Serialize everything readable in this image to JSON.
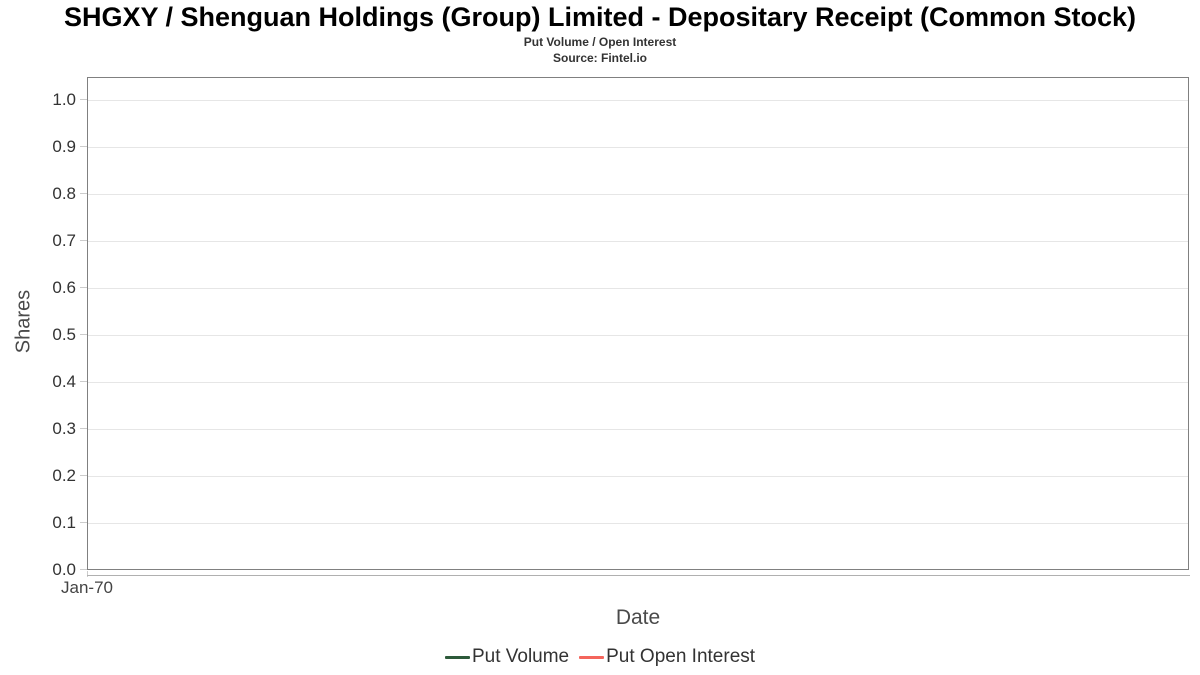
{
  "header": {
    "title": "SHGXY / Shenguan Holdings (Group) Limited - Depositary Receipt (Common Stock)",
    "subtitle": "Put Volume / Open Interest",
    "source": "Source: Fintel.io"
  },
  "chart_data": {
    "type": "line",
    "title": "SHGXY / Shenguan Holdings (Group) Limited - Depositary Receipt (Common Stock)",
    "subtitle": "Put Volume / Open Interest",
    "source": "Source: Fintel.io",
    "xlabel": "Date",
    "ylabel": "Shares",
    "ylim": [
      0.0,
      1.05
    ],
    "ytick_interval": 0.1,
    "yticks": [
      "0.0",
      "0.1",
      "0.2",
      "0.3",
      "0.4",
      "0.5",
      "0.6",
      "0.7",
      "0.8",
      "0.9",
      "1.0"
    ],
    "xticks": [
      "Jan-70"
    ],
    "grid": true,
    "legend_position": "bottom",
    "series": [
      {
        "name": "Put Volume",
        "color": "#2d5a3a",
        "x": [],
        "values": []
      },
      {
        "name": "Put Open Interest",
        "color": "#f4655c",
        "x": [],
        "values": []
      }
    ]
  },
  "colors": {
    "background": "#ffffff",
    "plot_border": "#808080",
    "gridline": "#e6e6e6",
    "axis_line": "#b0b0b0",
    "tick_mark": "#cccccc",
    "title_text": "#000000",
    "tick_text": "#333333",
    "axis_title_text": "#4a4a4a",
    "put_volume": "#2d5a3a",
    "put_open_interest": "#f4655c"
  }
}
